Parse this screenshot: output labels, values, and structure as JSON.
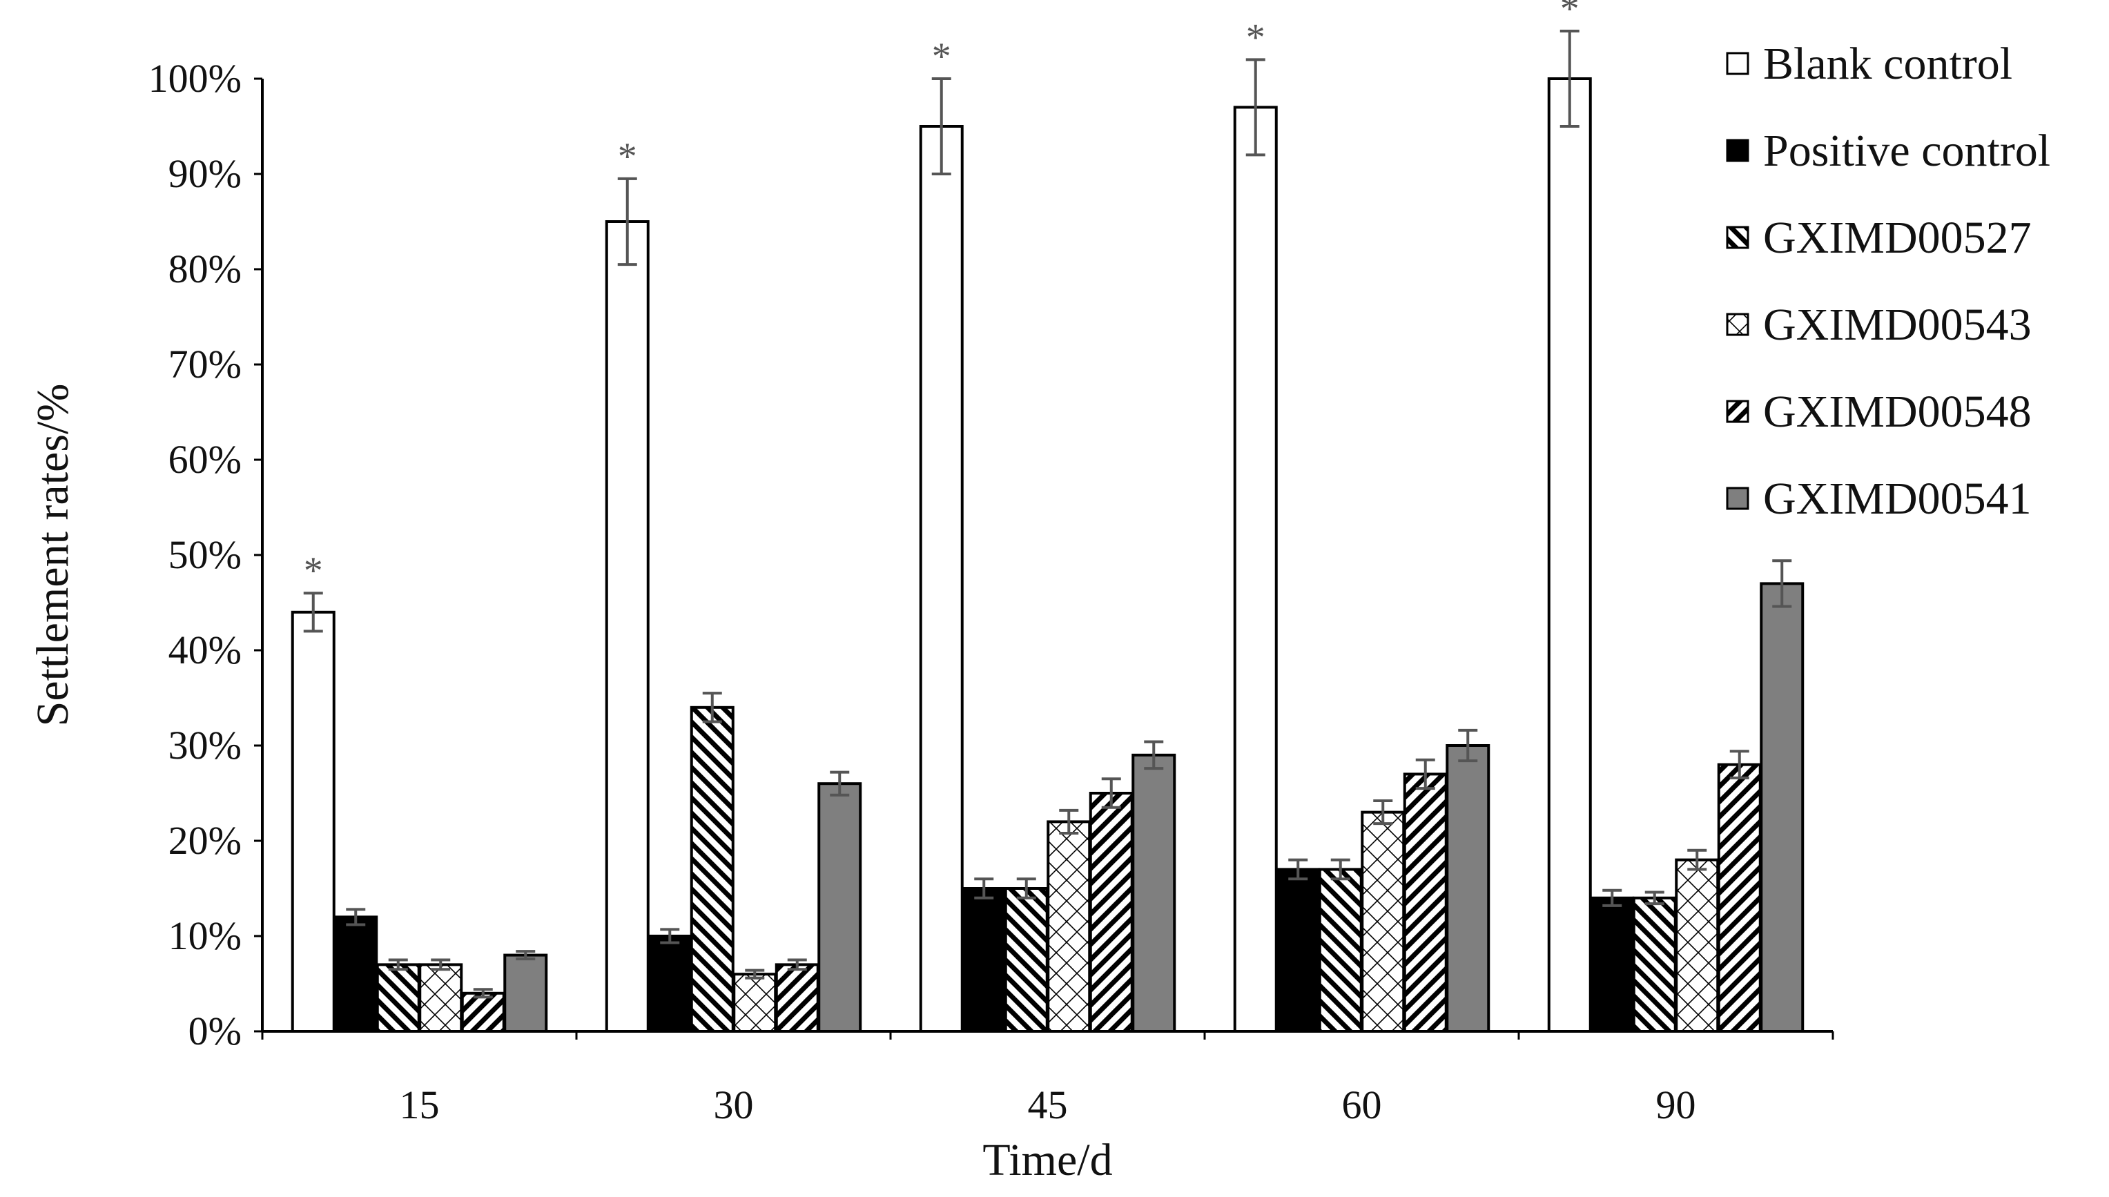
{
  "chart_data": {
    "type": "bar",
    "title": "",
    "xlabel": "Time/d",
    "ylabel": "Settlement rates/%",
    "categories": [
      "15",
      "30",
      "45",
      "60",
      "90"
    ],
    "ylim": [
      0,
      100
    ],
    "yticks": [
      0,
      10,
      20,
      30,
      40,
      50,
      60,
      70,
      80,
      90,
      100
    ],
    "ytick_labels": [
      "0%",
      "10%",
      "20%",
      "30%",
      "40%",
      "50%",
      "60%",
      "70%",
      "80%",
      "90%",
      "100%"
    ],
    "legend_position": "top-right",
    "significance_marker": "*",
    "series": [
      {
        "name": "Blank control",
        "pattern": "white",
        "values": [
          44,
          85,
          95,
          97,
          100
        ],
        "errors": [
          2,
          4.5,
          5,
          5,
          5
        ],
        "significant": [
          true,
          true,
          true,
          true,
          true
        ]
      },
      {
        "name": "Positive control",
        "pattern": "black",
        "values": [
          12,
          10,
          15,
          17,
          14
        ],
        "errors": [
          0.8,
          0.7,
          1,
          1,
          0.8
        ],
        "significant": [
          false,
          false,
          false,
          false,
          false
        ]
      },
      {
        "name": "GXIMD00527",
        "pattern": "diag-back",
        "values": [
          7,
          34,
          15,
          17,
          14
        ],
        "errors": [
          0.5,
          1.5,
          1,
          1,
          0.6
        ],
        "significant": [
          false,
          false,
          false,
          false,
          false
        ]
      },
      {
        "name": "GXIMD00543",
        "pattern": "cross",
        "values": [
          7,
          6,
          22,
          23,
          18
        ],
        "errors": [
          0.5,
          0.4,
          1.2,
          1.2,
          1
        ],
        "significant": [
          false,
          false,
          false,
          false,
          false
        ]
      },
      {
        "name": "GXIMD00548",
        "pattern": "diag-forward",
        "values": [
          4,
          7,
          25,
          27,
          28
        ],
        "errors": [
          0.4,
          0.5,
          1.5,
          1.5,
          1.4
        ],
        "significant": [
          false,
          false,
          false,
          false,
          false
        ]
      },
      {
        "name": "GXIMD00541",
        "pattern": "gray",
        "values": [
          8,
          26,
          29,
          30,
          47
        ],
        "errors": [
          0.4,
          1.2,
          1.4,
          1.6,
          2.4
        ],
        "significant": [
          false,
          false,
          false,
          false,
          false
        ]
      }
    ]
  }
}
